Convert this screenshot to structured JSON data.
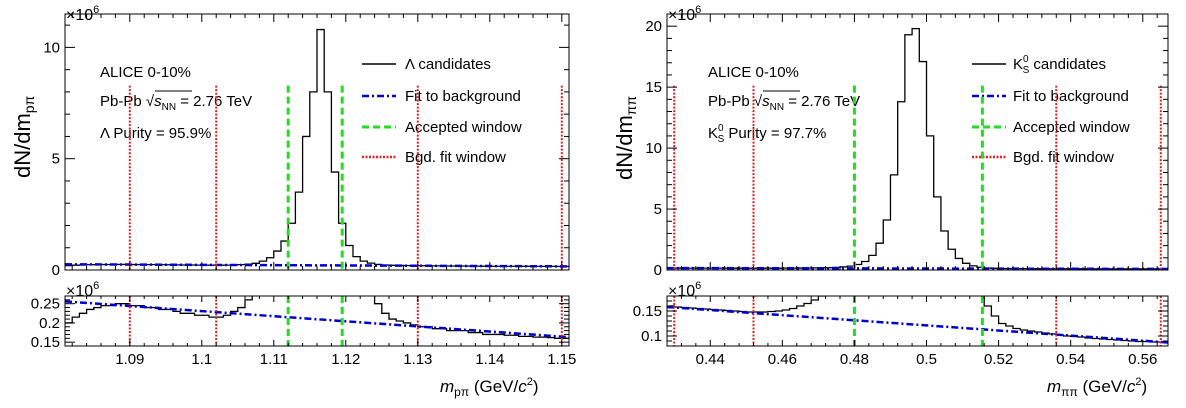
{
  "chart_data": [
    {
      "type": "line",
      "panel": "left",
      "ylabel_main": "dN/dm",
      "ylabel_main_sub": "pπ",
      "scale_label": "×10",
      "scale_exp": "6",
      "xlabel_m": "m",
      "xlabel_sub": "pπ",
      "xlabel_unit_pre": " (GeV/",
      "xlabel_unit_c": "c",
      "xlabel_unit_exp": "2",
      "xlabel_unit_post": ")",
      "xlim": [
        1.081,
        1.151
      ],
      "ylim_main": [
        0,
        11.5
      ],
      "ylim_ratio": [
        0.14,
        0.27
      ],
      "xticks": [
        "1.09",
        "1.1",
        "1.11",
        "1.12",
        "1.13",
        "1.14",
        "1.15"
      ],
      "xtick_values": [
        1.09,
        1.1,
        1.11,
        1.12,
        1.13,
        1.14,
        1.15
      ],
      "yticks_main": [
        "0",
        "5",
        "10"
      ],
      "ytick_main_values": [
        0,
        5,
        10
      ],
      "yticks_ratio": [
        "0.15",
        "0.2",
        "0.25"
      ],
      "ytick_ratio_values": [
        0.15,
        0.2,
        0.25
      ],
      "info": {
        "line1": "ALICE  0-10%",
        "line2_pre": "Pb-Pb ",
        "line2_sqrt": "√",
        "line2_s": "s",
        "line2_sub": "NN",
        "line2_post": " = 2.76 TeV",
        "line3": "Λ Purity = 95.9%"
      },
      "legend": {
        "candidates": "Λ candidates",
        "fit": "Fit to background",
        "accepted": "Accepted window",
        "bgd": "Bgd. fit window"
      },
      "colors": {
        "candidates": "#000000",
        "fit": "#0000cc",
        "accepted": "#22dd22",
        "bgd": "#dd2222"
      },
      "accepted_window": [
        1.112,
        1.1195
      ],
      "bgd_windows": [
        1.09,
        1.102,
        1.13,
        1.15
      ],
      "background": {
        "x": [
          1.081,
          1.151
        ],
        "y": [
          0.256,
          0.163
        ]
      },
      "histogram": {
        "x": [
          1.081,
          1.082,
          1.083,
          1.084,
          1.085,
          1.086,
          1.087,
          1.088,
          1.089,
          1.09,
          1.091,
          1.092,
          1.093,
          1.094,
          1.095,
          1.096,
          1.097,
          1.098,
          1.099,
          1.1,
          1.101,
          1.102,
          1.103,
          1.104,
          1.105,
          1.106,
          1.107,
          1.108,
          1.109,
          1.11,
          1.111,
          1.112,
          1.113,
          1.114,
          1.115,
          1.116,
          1.117,
          1.118,
          1.119,
          1.12,
          1.121,
          1.122,
          1.123,
          1.124,
          1.125,
          1.126,
          1.127,
          1.128,
          1.129,
          1.13,
          1.131,
          1.132,
          1.133,
          1.134,
          1.135,
          1.136,
          1.137,
          1.138,
          1.139,
          1.14,
          1.141,
          1.142,
          1.143,
          1.144,
          1.145,
          1.146,
          1.147,
          1.148,
          1.149,
          1.15
        ],
        "y": [
          0.2,
          0.215,
          0.225,
          0.235,
          0.24,
          0.245,
          0.245,
          0.25,
          0.25,
          0.245,
          0.245,
          0.24,
          0.24,
          0.235,
          0.235,
          0.23,
          0.225,
          0.225,
          0.22,
          0.22,
          0.215,
          0.215,
          0.22,
          0.23,
          0.24,
          0.26,
          0.3,
          0.4,
          0.55,
          0.85,
          1.3,
          2.1,
          3.5,
          6.0,
          8.0,
          10.8,
          8.0,
          4.4,
          2.1,
          1.1,
          0.6,
          0.4,
          0.31,
          0.25,
          0.225,
          0.21,
          0.205,
          0.2,
          0.195,
          0.19,
          0.19,
          0.185,
          0.185,
          0.18,
          0.18,
          0.18,
          0.175,
          0.175,
          0.17,
          0.17,
          0.17,
          0.168,
          0.168,
          0.165,
          0.165,
          0.163,
          0.163,
          0.162,
          0.16,
          0.16
        ]
      }
    },
    {
      "type": "line",
      "panel": "right",
      "ylabel_main": "dN/dm",
      "ylabel_main_sub": "ππ",
      "scale_label": "×10",
      "scale_exp": "6",
      "xlabel_m": "m",
      "xlabel_sub": "ππ",
      "xlabel_unit_pre": " (GeV/",
      "xlabel_unit_c": "c",
      "xlabel_unit_exp": "2",
      "xlabel_unit_post": ")",
      "xlim": [
        0.428,
        0.567
      ],
      "ylim_main": [
        0,
        21
      ],
      "ylim_ratio": [
        0.08,
        0.18
      ],
      "xticks": [
        "0.44",
        "0.46",
        "0.48",
        "0.5",
        "0.52",
        "0.54",
        "0.56"
      ],
      "xtick_values": [
        0.44,
        0.46,
        0.48,
        0.5,
        0.52,
        0.54,
        0.56
      ],
      "yticks_main": [
        "0",
        "5",
        "10",
        "15",
        "20"
      ],
      "ytick_main_values": [
        0,
        5,
        10,
        15,
        20
      ],
      "yticks_ratio": [
        "0.1",
        "0.15"
      ],
      "ytick_ratio_values": [
        0.1,
        0.15
      ],
      "info": {
        "line1": "ALICE  0-10%",
        "line2_pre": "Pb-Pb ",
        "line2_sqrt": "√",
        "line2_s": "s",
        "line2_sub": "NN",
        "line2_post": " = 2.76 TeV",
        "line3_k": "K",
        "line3_sup": "0",
        "line3_sub": "S",
        "line3_post": " Purity = 97.7%"
      },
      "legend": {
        "candidates_k": "K",
        "candidates_sup": "0",
        "candidates_sub": "S",
        "candidates_post": " candidates",
        "fit": "Fit to background",
        "accepted": "Accepted window",
        "bgd": "Bgd. fit window"
      },
      "colors": {
        "candidates": "#000000",
        "fit": "#0000cc",
        "accepted": "#22dd22",
        "bgd": "#dd2222"
      },
      "accepted_window": [
        0.48,
        0.5155
      ],
      "bgd_windows": [
        0.43,
        0.452,
        0.536,
        0.565
      ],
      "background": {
        "x": [
          0.428,
          0.567
        ],
        "y": [
          0.158,
          0.087
        ]
      },
      "histogram": {
        "x": [
          0.428,
          0.43,
          0.432,
          0.434,
          0.436,
          0.438,
          0.44,
          0.442,
          0.444,
          0.446,
          0.448,
          0.45,
          0.452,
          0.454,
          0.456,
          0.458,
          0.46,
          0.462,
          0.464,
          0.466,
          0.468,
          0.47,
          0.472,
          0.474,
          0.476,
          0.478,
          0.48,
          0.482,
          0.484,
          0.486,
          0.488,
          0.49,
          0.492,
          0.494,
          0.496,
          0.498,
          0.5,
          0.502,
          0.504,
          0.506,
          0.508,
          0.51,
          0.512,
          0.514,
          0.516,
          0.518,
          0.52,
          0.522,
          0.524,
          0.526,
          0.528,
          0.53,
          0.532,
          0.534,
          0.536,
          0.538,
          0.54,
          0.542,
          0.544,
          0.546,
          0.548,
          0.55,
          0.552,
          0.554,
          0.556,
          0.558,
          0.56,
          0.562,
          0.564
        ],
        "y": [
          0.16,
          0.158,
          0.157,
          0.156,
          0.155,
          0.154,
          0.153,
          0.152,
          0.151,
          0.15,
          0.149,
          0.148,
          0.148,
          0.148,
          0.149,
          0.15,
          0.152,
          0.155,
          0.16,
          0.165,
          0.172,
          0.18,
          0.19,
          0.21,
          0.25,
          0.32,
          0.45,
          0.7,
          1.2,
          2.2,
          4.1,
          7.8,
          13.8,
          19.3,
          19.8,
          17.1,
          11.0,
          6.0,
          3.2,
          1.7,
          0.95,
          0.55,
          0.34,
          0.22,
          0.16,
          0.14,
          0.125,
          0.12,
          0.115,
          0.112,
          0.11,
          0.108,
          0.106,
          0.104,
          0.102,
          0.1,
          0.099,
          0.098,
          0.096,
          0.095,
          0.094,
          0.093,
          0.092,
          0.091,
          0.09,
          0.089,
          0.089,
          0.088,
          0.088
        ]
      }
    }
  ]
}
